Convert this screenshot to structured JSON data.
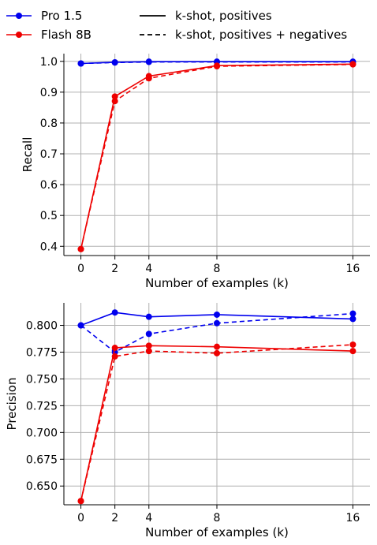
{
  "legend": {
    "colors": [
      {
        "label": "Pro 1.5",
        "color": "#0000ee"
      },
      {
        "label": "Flash 8B",
        "color": "#ee0000"
      }
    ],
    "styles": [
      {
        "label": "k-shot, positives",
        "dash": "solid"
      },
      {
        "label": "k-shot, positives + negatives",
        "dash": "dashed"
      }
    ]
  },
  "chart_data": [
    {
      "type": "line",
      "xlabel": "Number of examples (k)",
      "ylabel": "Recall",
      "x": [
        0,
        2,
        4,
        8,
        16
      ],
      "xticks": [
        "0",
        "2",
        "4",
        "8",
        "16"
      ],
      "ylim": [
        0.37,
        1.025
      ],
      "yticks": [
        "0.4",
        "0.5",
        "0.6",
        "0.7",
        "0.8",
        "0.9",
        "1.0"
      ],
      "grid": true,
      "series": [
        {
          "model": "Pro 1.5",
          "style": "k-shot, positives",
          "color": "#0000ee",
          "dash": "solid",
          "values": [
            0.993,
            0.997,
            0.999,
            0.999,
            0.999
          ]
        },
        {
          "model": "Pro 1.5",
          "style": "k-shot, positives + negatives",
          "color": "#0000ee",
          "dash": "dashed",
          "values": [
            0.993,
            0.996,
            0.998,
            0.998,
            0.998
          ]
        },
        {
          "model": "Flash 8B",
          "style": "k-shot, positives",
          "color": "#ee0000",
          "dash": "solid",
          "values": [
            0.391,
            0.886,
            0.952,
            0.986,
            0.991
          ]
        },
        {
          "model": "Flash 8B",
          "style": "k-shot, positives + negatives",
          "color": "#ee0000",
          "dash": "dashed",
          "values": [
            0.391,
            0.871,
            0.945,
            0.984,
            0.99
          ]
        }
      ]
    },
    {
      "type": "line",
      "xlabel": "Number of examples (k)",
      "ylabel": "Precision",
      "x": [
        0,
        2,
        4,
        8,
        16
      ],
      "xticks": [
        "0",
        "2",
        "4",
        "8",
        "16"
      ],
      "ylim": [
        0.6325,
        0.821
      ],
      "yticks": [
        "0.650",
        "0.675",
        "0.700",
        "0.725",
        "0.750",
        "0.775",
        "0.800"
      ],
      "grid": true,
      "series": [
        {
          "model": "Pro 1.5",
          "style": "k-shot, positives",
          "color": "#0000ee",
          "dash": "solid",
          "values": [
            0.8,
            0.812,
            0.808,
            0.81,
            0.806
          ]
        },
        {
          "model": "Pro 1.5",
          "style": "k-shot, positives + negatives",
          "color": "#0000ee",
          "dash": "dashed",
          "values": [
            0.8,
            0.775,
            0.792,
            0.802,
            0.811
          ]
        },
        {
          "model": "Flash 8B",
          "style": "k-shot, positives",
          "color": "#ee0000",
          "dash": "solid",
          "values": [
            0.636,
            0.779,
            0.781,
            0.78,
            0.776
          ]
        },
        {
          "model": "Flash 8B",
          "style": "k-shot, positives + negatives",
          "color": "#ee0000",
          "dash": "dashed",
          "values": [
            0.636,
            0.771,
            0.776,
            0.774,
            0.782
          ]
        }
      ]
    }
  ]
}
